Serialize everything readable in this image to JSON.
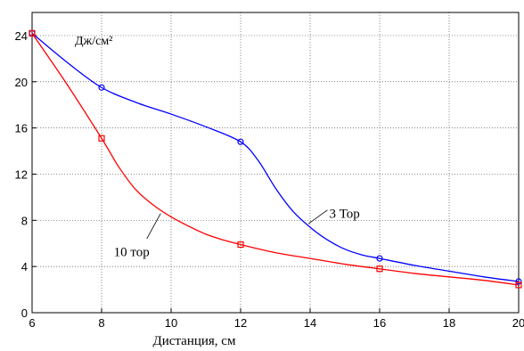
{
  "chart_data": {
    "type": "line",
    "title": "",
    "xlabel": "Дистанция, см",
    "ylabel": "Дж/см²",
    "xlim": [
      6,
      20
    ],
    "ylim": [
      0,
      26
    ],
    "x_ticks": [
      6,
      8,
      10,
      12,
      14,
      16,
      18,
      20
    ],
    "y_ticks": [
      0,
      4,
      8,
      12,
      16,
      20,
      24
    ],
    "grid": true,
    "series": [
      {
        "name": "3 Тор",
        "color": "#0000ff",
        "marker": "circle",
        "x": [
          6,
          8,
          12,
          16,
          20
        ],
        "y": [
          24.2,
          19.5,
          14.8,
          4.7,
          2.7
        ],
        "curve_x": [
          6,
          7,
          8,
          9,
          10,
          11,
          12,
          12.5,
          13,
          13.5,
          14,
          14.5,
          15,
          15.5,
          16,
          17,
          18,
          19,
          20
        ],
        "curve_y": [
          24.2,
          21.7,
          19.5,
          18.2,
          17.2,
          16.1,
          14.8,
          13.2,
          10.8,
          8.8,
          7.4,
          6.3,
          5.5,
          5.0,
          4.7,
          4.1,
          3.6,
          3.1,
          2.7
        ]
      },
      {
        "name": "10 тор",
        "color": "#ff0000",
        "marker": "square",
        "x": [
          6,
          8,
          12,
          16,
          20
        ],
        "y": [
          24.2,
          15.1,
          5.9,
          3.8,
          2.4
        ],
        "curve_x": [
          6,
          7,
          8,
          8.5,
          9,
          9.5,
          10,
          10.5,
          11,
          11.5,
          12,
          13,
          14,
          15,
          16,
          17,
          18,
          19,
          20
        ],
        "curve_y": [
          24.2,
          19.8,
          15.1,
          12.6,
          10.6,
          9.3,
          8.3,
          7.5,
          6.8,
          6.3,
          5.9,
          5.2,
          4.7,
          4.2,
          3.8,
          3.4,
          3.1,
          2.8,
          2.4
        ]
      }
    ]
  }
}
